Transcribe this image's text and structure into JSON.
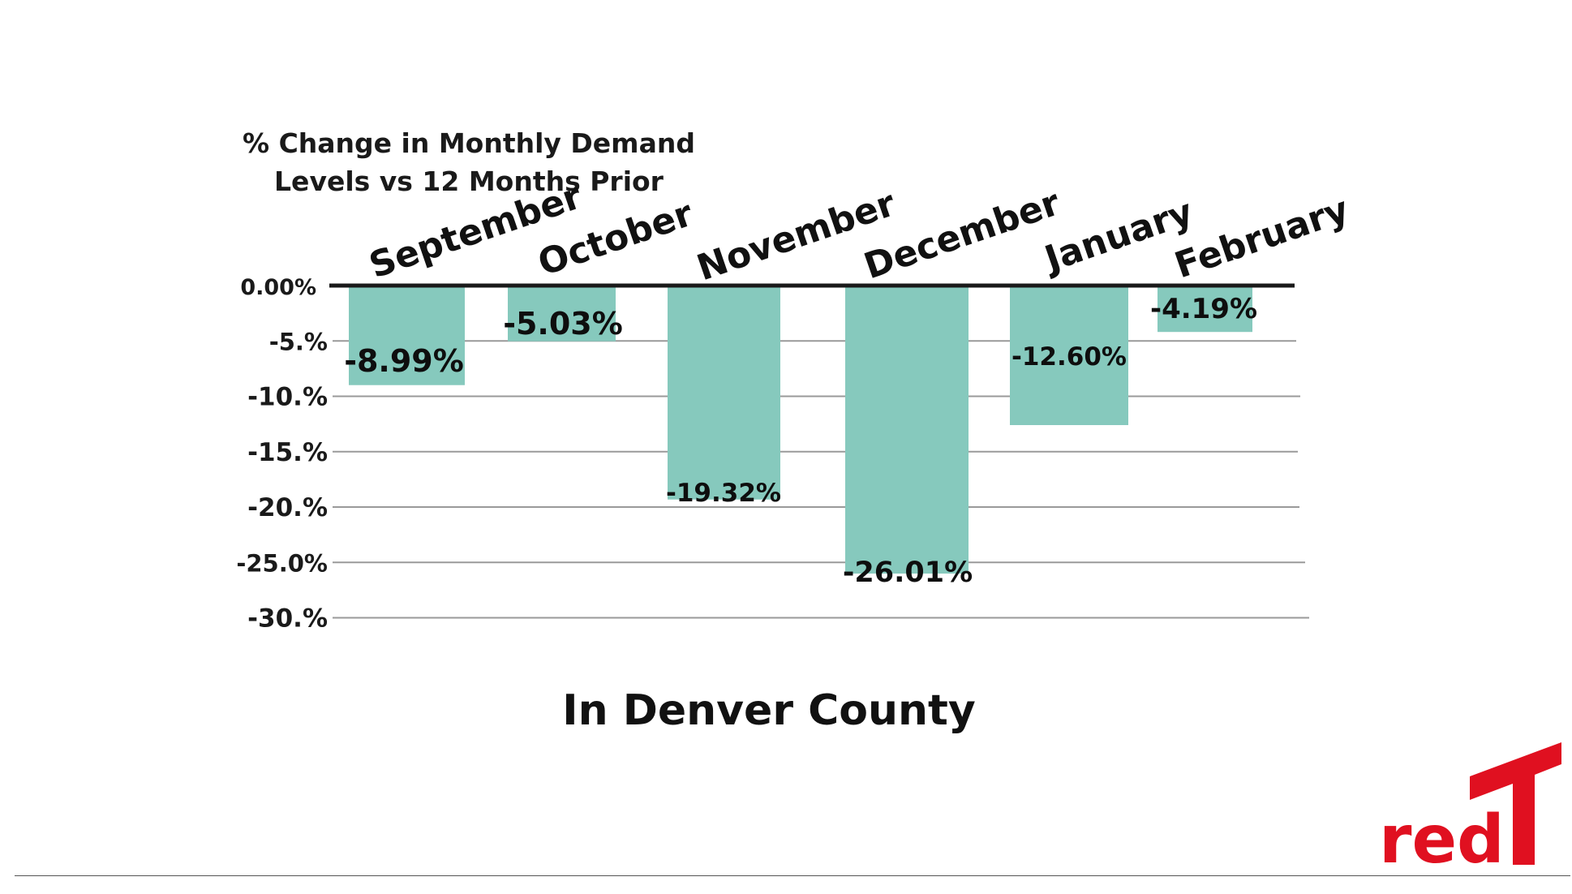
{
  "title_lines": [
    "% Change  in Monthly Demand",
    "Levels vs 12 Months Prior"
  ],
  "subtitle": "In Denver County",
  "logo": {
    "text": "red",
    "color": "#e01020"
  },
  "colors": {
    "bar": "#86c9bd",
    "baseline": "#1a1a1a",
    "grid": "#9a9a9a"
  },
  "chart_data": {
    "type": "bar",
    "title": "% Change  in Monthly Demand Levels vs 12 Months Prior",
    "subtitle": "In Denver County",
    "categories": [
      "September",
      "October",
      "November",
      "December",
      "January",
      "February"
    ],
    "values": [
      -8.99,
      -5.03,
      -19.32,
      -26.01,
      -12.6,
      -4.19
    ],
    "data_labels": [
      "-8.99%",
      "-5.03%",
      "-19.32%",
      "-26.01%",
      "-12.60%",
      "-4.19%"
    ],
    "y_ticks": [
      0,
      -5,
      -10,
      -15,
      -20,
      -25,
      -30
    ],
    "y_tick_labels": [
      "0.00%",
      "-5.%",
      "-10.%",
      "-15.%",
      "-20.%",
      "-25.0%",
      "-30.%"
    ],
    "ylim": [
      -30,
      0
    ],
    "xlabel": "",
    "ylabel": "",
    "grid": true,
    "legend": "none",
    "category_axis_position": "top"
  }
}
